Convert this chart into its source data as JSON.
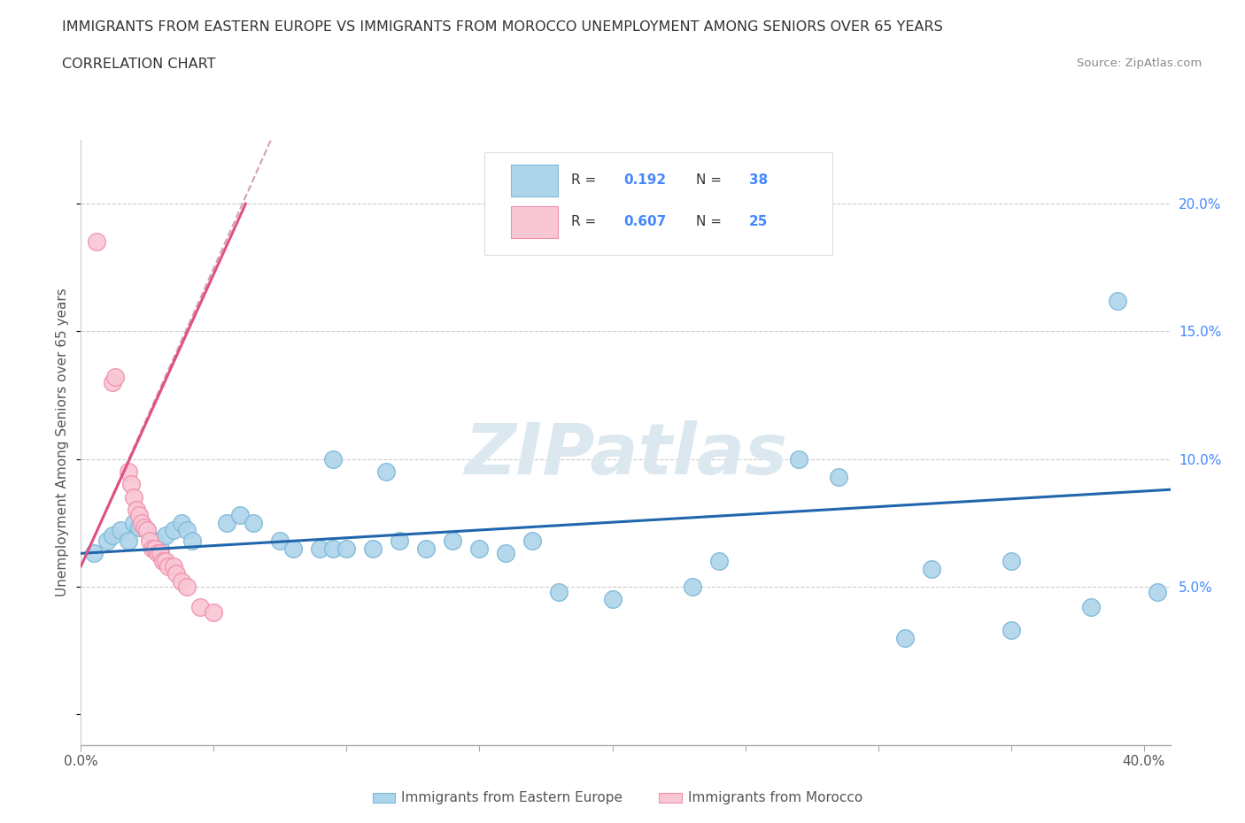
{
  "title_line1": "IMMIGRANTS FROM EASTERN EUROPE VS IMMIGRANTS FROM MOROCCO UNEMPLOYMENT AMONG SENIORS OVER 65 YEARS",
  "title_line2": "CORRELATION CHART",
  "source": "Source: ZipAtlas.com",
  "ylabel": "Unemployment Among Seniors over 65 years",
  "yticks": [
    0.05,
    0.1,
    0.15,
    0.2
  ],
  "ytick_labels": [
    "5.0%",
    "10.0%",
    "15.0%",
    "20.0%"
  ],
  "xlim": [
    0.0,
    0.41
  ],
  "ylim": [
    -0.012,
    0.225
  ],
  "watermark": "ZIPatlas",
  "blue_scatter": [
    [
      0.005,
      0.063
    ],
    [
      0.01,
      0.068
    ],
    [
      0.012,
      0.07
    ],
    [
      0.015,
      0.072
    ],
    [
      0.018,
      0.068
    ],
    [
      0.02,
      0.075
    ],
    [
      0.022,
      0.073
    ],
    [
      0.025,
      0.072
    ],
    [
      0.028,
      0.068
    ],
    [
      0.03,
      0.065
    ],
    [
      0.032,
      0.07
    ],
    [
      0.035,
      0.072
    ],
    [
      0.038,
      0.075
    ],
    [
      0.04,
      0.072
    ],
    [
      0.042,
      0.068
    ],
    [
      0.055,
      0.075
    ],
    [
      0.06,
      0.078
    ],
    [
      0.065,
      0.075
    ],
    [
      0.075,
      0.068
    ],
    [
      0.08,
      0.065
    ],
    [
      0.09,
      0.065
    ],
    [
      0.095,
      0.065
    ],
    [
      0.1,
      0.065
    ],
    [
      0.11,
      0.065
    ],
    [
      0.12,
      0.068
    ],
    [
      0.13,
      0.065
    ],
    [
      0.14,
      0.068
    ],
    [
      0.15,
      0.065
    ],
    [
      0.16,
      0.063
    ],
    [
      0.17,
      0.068
    ],
    [
      0.18,
      0.048
    ],
    [
      0.2,
      0.045
    ],
    [
      0.23,
      0.05
    ],
    [
      0.24,
      0.06
    ],
    [
      0.27,
      0.1
    ],
    [
      0.285,
      0.093
    ],
    [
      0.32,
      0.057
    ],
    [
      0.35,
      0.06
    ],
    [
      0.39,
      0.162
    ],
    [
      0.405,
      0.048
    ],
    [
      0.095,
      0.1
    ],
    [
      0.115,
      0.095
    ],
    [
      0.31,
      0.03
    ],
    [
      0.35,
      0.033
    ],
    [
      0.38,
      0.042
    ]
  ],
  "pink_scatter": [
    [
      0.006,
      0.185
    ],
    [
      0.012,
      0.13
    ],
    [
      0.013,
      0.132
    ],
    [
      0.018,
      0.095
    ],
    [
      0.019,
      0.09
    ],
    [
      0.02,
      0.085
    ],
    [
      0.021,
      0.08
    ],
    [
      0.022,
      0.078
    ],
    [
      0.023,
      0.075
    ],
    [
      0.024,
      0.073
    ],
    [
      0.025,
      0.072
    ],
    [
      0.026,
      0.068
    ],
    [
      0.027,
      0.065
    ],
    [
      0.028,
      0.065
    ],
    [
      0.029,
      0.063
    ],
    [
      0.03,
      0.063
    ],
    [
      0.031,
      0.06
    ],
    [
      0.032,
      0.06
    ],
    [
      0.033,
      0.058
    ],
    [
      0.035,
      0.058
    ],
    [
      0.036,
      0.055
    ],
    [
      0.038,
      0.052
    ],
    [
      0.04,
      0.05
    ],
    [
      0.045,
      0.042
    ],
    [
      0.05,
      0.04
    ]
  ],
  "blue_trendline": [
    [
      0.0,
      0.063
    ],
    [
      0.41,
      0.088
    ]
  ],
  "pink_trendline": [
    [
      0.0,
      0.058
    ],
    [
      0.062,
      0.2
    ]
  ],
  "pink_trendline_dashed": [
    [
      0.0,
      0.058
    ],
    [
      0.14,
      0.385
    ]
  ]
}
